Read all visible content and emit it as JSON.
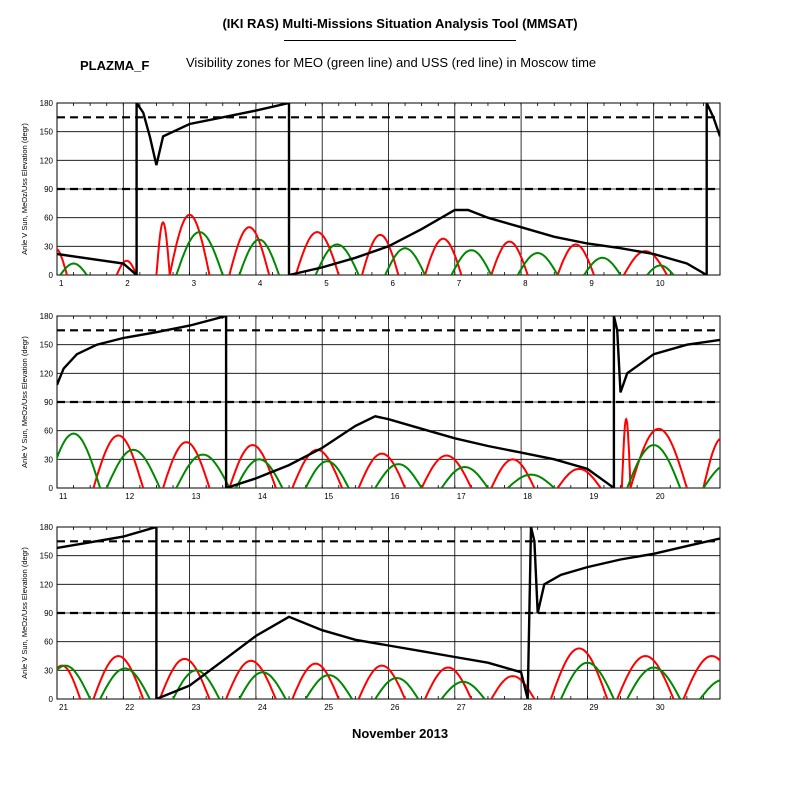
{
  "header": {
    "title": "(IKI RAS) Multi-Missions Situation Analysis Tool (MMSAT)",
    "satellite": "PLAZMA_F",
    "subtitle": "Visibility zones for MEO (green line) and USS (red line) in Moscow time"
  },
  "footer": {
    "month_label": "November 2013"
  },
  "chart_data": [
    {
      "type": "line",
      "panel": 1,
      "xlim": [
        1,
        11
      ],
      "x_ticks": [
        "1",
        "2",
        "3",
        "4",
        "5",
        "6",
        "7",
        "8",
        "9",
        "10"
      ],
      "ylabel": "Anle V Sun, MeOz/Uss Elevation (degr)",
      "ylim": [
        0,
        180
      ],
      "y_ticks": [
        "0",
        "30",
        "60",
        "90",
        "120",
        "150",
        "180"
      ],
      "reference_lines": [
        90,
        165
      ],
      "grid": true,
      "colors": {
        "sun": "#000000",
        "uss": "#ff0000",
        "meo": "#008800"
      },
      "sun_angle": [
        [
          1.0,
          22
        ],
        [
          2.0,
          12
        ],
        [
          2.2,
          0
        ],
        [
          2.2,
          180
        ],
        [
          2.3,
          170
        ],
        [
          2.4,
          145
        ],
        [
          2.5,
          115
        ],
        [
          2.6,
          145
        ],
        [
          3.0,
          158
        ],
        [
          3.5,
          165
        ],
        [
          4.0,
          172
        ],
        [
          4.5,
          180
        ],
        [
          4.5,
          0
        ],
        [
          5.0,
          8
        ],
        [
          5.5,
          18
        ],
        [
          6.0,
          30
        ],
        [
          6.5,
          48
        ],
        [
          7.0,
          68
        ],
        [
          7.2,
          68
        ],
        [
          7.5,
          60
        ],
        [
          8.0,
          50
        ],
        [
          8.5,
          40
        ],
        [
          9.0,
          33
        ],
        [
          9.5,
          28
        ],
        [
          10.0,
          22
        ],
        [
          10.5,
          12
        ],
        [
          10.8,
          0
        ],
        [
          10.8,
          180
        ],
        [
          10.9,
          165
        ],
        [
          11.0,
          145
        ]
      ],
      "uss_passes": [
        [
          0.8,
          1.15,
          28
        ],
        [
          1.9,
          2.2,
          15
        ],
        [
          2.5,
          2.7,
          55
        ],
        [
          2.7,
          3.3,
          63
        ],
        [
          3.6,
          4.2,
          50
        ],
        [
          4.6,
          5.25,
          45
        ],
        [
          5.6,
          6.15,
          42
        ],
        [
          6.55,
          7.1,
          38
        ],
        [
          7.55,
          8.1,
          35
        ],
        [
          8.55,
          9.1,
          32
        ],
        [
          9.55,
          10.2,
          25
        ]
      ],
      "meo_passes": [
        [
          1.05,
          1.45,
          12
        ],
        [
          2.8,
          3.5,
          45
        ],
        [
          3.75,
          4.35,
          37
        ],
        [
          4.9,
          5.55,
          32
        ],
        [
          5.95,
          6.55,
          28
        ],
        [
          6.95,
          7.55,
          26
        ],
        [
          7.95,
          8.55,
          23
        ],
        [
          8.95,
          9.5,
          18
        ],
        [
          9.9,
          10.3,
          10
        ]
      ]
    },
    {
      "type": "line",
      "panel": 2,
      "xlim": [
        11,
        21
      ],
      "x_ticks": [
        "11",
        "12",
        "13",
        "14",
        "15",
        "16",
        "17",
        "18",
        "19",
        "20"
      ],
      "ylabel": "Anle V Sun, MeOz/Uss Elevation (degr)",
      "ylim": [
        0,
        180
      ],
      "y_ticks": [
        "0",
        "30",
        "60",
        "90",
        "120",
        "150",
        "180"
      ],
      "reference_lines": [
        90,
        165
      ],
      "grid": true,
      "colors": {
        "sun": "#000000",
        "uss": "#ff0000",
        "meo": "#008800"
      },
      "sun_angle": [
        [
          11.0,
          108
        ],
        [
          11.1,
          125
        ],
        [
          11.3,
          140
        ],
        [
          11.6,
          150
        ],
        [
          12.0,
          157
        ],
        [
          12.5,
          163
        ],
        [
          13.0,
          170
        ],
        [
          13.55,
          180
        ],
        [
          13.55,
          0
        ],
        [
          14.0,
          10
        ],
        [
          14.5,
          24
        ],
        [
          15.0,
          42
        ],
        [
          15.5,
          65
        ],
        [
          15.8,
          75
        ],
        [
          16.0,
          72
        ],
        [
          16.5,
          62
        ],
        [
          17.0,
          52
        ],
        [
          17.5,
          44
        ],
        [
          18.0,
          37
        ],
        [
          18.5,
          30
        ],
        [
          19.0,
          20
        ],
        [
          19.3,
          5
        ],
        [
          19.4,
          0
        ],
        [
          19.4,
          180
        ],
        [
          19.45,
          165
        ],
        [
          19.5,
          100
        ],
        [
          19.6,
          120
        ],
        [
          20.0,
          140
        ],
        [
          20.5,
          150
        ],
        [
          21.0,
          155
        ]
      ],
      "uss_passes": [
        [
          11.55,
          12.3,
          55
        ],
        [
          12.6,
          13.3,
          48
        ],
        [
          13.6,
          14.3,
          45
        ],
        [
          14.55,
          15.3,
          40
        ],
        [
          15.55,
          16.25,
          36
        ],
        [
          16.5,
          17.25,
          34
        ],
        [
          17.55,
          18.2,
          30
        ],
        [
          18.55,
          19.2,
          20
        ],
        [
          19.52,
          19.65,
          72
        ],
        [
          19.65,
          20.5,
          62
        ],
        [
          20.75,
          21.3,
          52
        ]
      ],
      "meo_passes": [
        [
          10.85,
          11.65,
          57
        ],
        [
          11.75,
          12.55,
          40
        ],
        [
          12.8,
          13.6,
          35
        ],
        [
          13.7,
          14.4,
          30
        ],
        [
          14.75,
          15.4,
          28
        ],
        [
          15.8,
          16.5,
          25
        ],
        [
          16.8,
          17.5,
          22
        ],
        [
          17.8,
          18.5,
          14
        ],
        [
          19.6,
          20.4,
          45
        ],
        [
          20.75,
          21.5,
          25
        ]
      ]
    },
    {
      "type": "line",
      "panel": 3,
      "xlim": [
        21,
        31
      ],
      "x_ticks": [
        "21",
        "22",
        "23",
        "24",
        "25",
        "26",
        "27",
        "28",
        "29",
        "30"
      ],
      "ylabel": "Anle V Sun, MeOz/Uss Elevation (degr)",
      "ylim": [
        0,
        180
      ],
      "y_ticks": [
        "0",
        "30",
        "60",
        "90",
        "120",
        "150",
        "180"
      ],
      "reference_lines": [
        90,
        165
      ],
      "grid": true,
      "colors": {
        "sun": "#000000",
        "uss": "#ff0000",
        "meo": "#008800"
      },
      "sun_angle": [
        [
          21.0,
          158
        ],
        [
          21.5,
          164
        ],
        [
          22.0,
          170
        ],
        [
          22.5,
          180
        ],
        [
          22.5,
          0
        ],
        [
          23.0,
          14
        ],
        [
          23.5,
          40
        ],
        [
          24.0,
          66
        ],
        [
          24.5,
          86
        ],
        [
          25.0,
          72
        ],
        [
          25.5,
          62
        ],
        [
          26.0,
          56
        ],
        [
          26.5,
          50
        ],
        [
          27.0,
          44
        ],
        [
          27.5,
          38
        ],
        [
          28.0,
          28
        ],
        [
          28.1,
          0
        ],
        [
          28.15,
          180
        ],
        [
          28.2,
          165
        ],
        [
          28.25,
          90
        ],
        [
          28.35,
          120
        ],
        [
          28.6,
          130
        ],
        [
          29.0,
          138
        ],
        [
          29.5,
          146
        ],
        [
          30.0,
          152
        ],
        [
          30.5,
          160
        ],
        [
          31.0,
          168
        ]
      ],
      "uss_passes": [
        [
          20.8,
          21.35,
          35
        ],
        [
          21.55,
          22.3,
          45
        ],
        [
          22.55,
          23.3,
          42
        ],
        [
          23.55,
          24.3,
          40
        ],
        [
          24.55,
          25.25,
          37
        ],
        [
          25.55,
          26.25,
          35
        ],
        [
          26.55,
          27.25,
          33
        ],
        [
          27.55,
          28.2,
          24
        ],
        [
          28.45,
          29.3,
          53
        ],
        [
          29.45,
          30.3,
          45
        ],
        [
          30.45,
          31.3,
          45
        ]
      ],
      "meo_passes": [
        [
          20.75,
          21.5,
          35
        ],
        [
          21.65,
          22.4,
          32
        ],
        [
          22.75,
          23.45,
          30
        ],
        [
          23.75,
          24.45,
          28
        ],
        [
          24.75,
          25.45,
          25
        ],
        [
          25.8,
          26.45,
          22
        ],
        [
          26.8,
          27.45,
          18
        ],
        [
          28.6,
          29.4,
          38
        ],
        [
          29.6,
          30.4,
          33
        ],
        [
          30.7,
          31.4,
          20
        ]
      ]
    }
  ]
}
